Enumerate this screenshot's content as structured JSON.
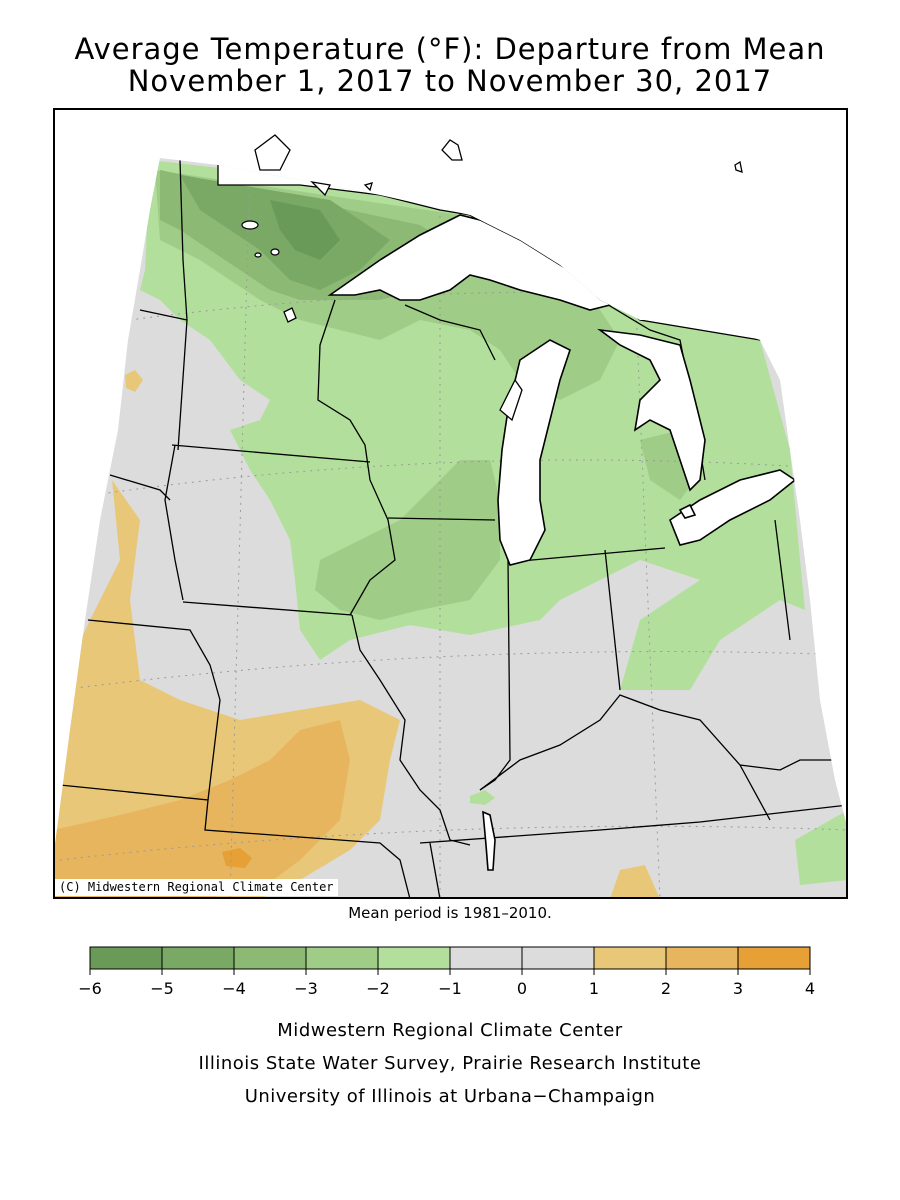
{
  "title_line1": "Average Temperature (°F): Departure from Mean",
  "title_line2": "November 1, 2017 to November 30, 2017",
  "credit": "(C) Midwestern Regional Climate Center",
  "mean_period": "Mean period is 1981–2010.",
  "colors": {
    "land": "#dcdcdc",
    "water": "#ffffff",
    "border": "#000000"
  },
  "legend": {
    "ticks": [
      "−6",
      "−5",
      "−4",
      "−3",
      "−2",
      "−1",
      "0",
      "1",
      "2",
      "3",
      "4"
    ],
    "bins": [
      {
        "from": -6,
        "to": -5,
        "color": "#6a9a57"
      },
      {
        "from": -5,
        "to": -4,
        "color": "#7aa965"
      },
      {
        "from": -4,
        "to": -3,
        "color": "#8cba74"
      },
      {
        "from": -3,
        "to": -2,
        "color": "#9fcc86"
      },
      {
        "from": -2,
        "to": -1,
        "color": "#b2e09c"
      },
      {
        "from": -1,
        "to": 0,
        "color": "#dcdcdc"
      },
      {
        "from": 0,
        "to": 1,
        "color": "#dcdcdc"
      },
      {
        "from": 1,
        "to": 2,
        "color": "#e8c878"
      },
      {
        "from": 2,
        "to": 3,
        "color": "#e6b55e"
      },
      {
        "from": 3,
        "to": 4,
        "color": "#e6a035"
      }
    ]
  },
  "footer": {
    "line1": "Midwestern Regional Climate Center",
    "line2": "Illinois State Water Survey, Prairie Research Institute",
    "line3": "University of Illinois at Urbana−Champaign"
  }
}
